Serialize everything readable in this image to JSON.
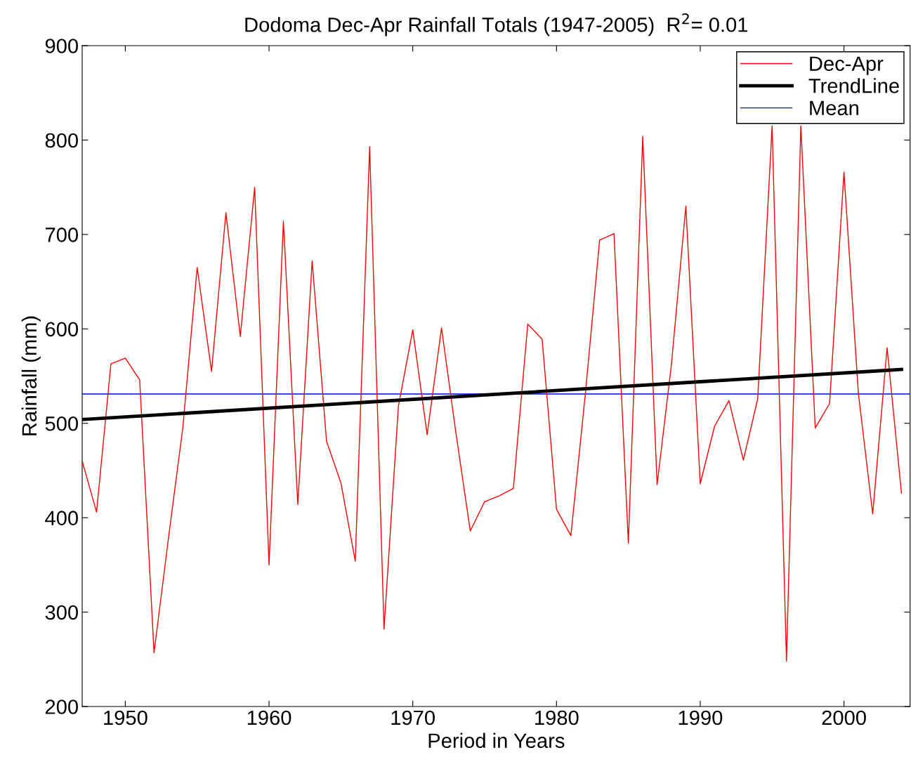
{
  "chart_data": {
    "type": "line",
    "title": "Dodoma Dec-Apr Rainfall Totals (1947-2005)  R$^{2}$= 0.01",
    "xlabel": "Period in Years",
    "ylabel": "Rainfall (mm)",
    "series": [
      {
        "name": "Dec-Apr",
        "color": "#ff0000",
        "x": [
          1947,
          1948,
          1949,
          1950,
          1951,
          1952,
          1953,
          1954,
          1955,
          1956,
          1957,
          1958,
          1959,
          1960,
          1961,
          1962,
          1963,
          1964,
          1965,
          1966,
          1967,
          1968,
          1969,
          1970,
          1971,
          1972,
          1973,
          1974,
          1975,
          1976,
          1977,
          1978,
          1979,
          1980,
          1981,
          1982,
          1983,
          1984,
          1985,
          1986,
          1987,
          1988,
          1989,
          1990,
          1991,
          1992,
          1993,
          1994,
          1995,
          1996,
          1997,
          1998,
          1999,
          2000,
          2001,
          2002,
          2003,
          2004
        ],
        "values": [
          460,
          406,
          563,
          569,
          546,
          257,
          378,
          495,
          665,
          555,
          723,
          592,
          750,
          350,
          714,
          414,
          672,
          481,
          437,
          354,
          793,
          282,
          518,
          599,
          488,
          601,
          490,
          386,
          417,
          423,
          431,
          605,
          589,
          409,
          381,
          530,
          694,
          701,
          373,
          804,
          435,
          563,
          730,
          436,
          497,
          524,
          461,
          526,
          815,
          248,
          815,
          495,
          521,
          766,
          532,
          404,
          580,
          426
        ]
      },
      {
        "name": "TrendLine",
        "color": "#000000",
        "x": [
          1947,
          2004
        ],
        "values": [
          504,
          557
        ]
      }
    ],
    "ref_lines": [
      {
        "axis": "y",
        "value": 531,
        "label": "Mean",
        "color": "#0000ff"
      }
    ],
    "xlim": [
      1947,
      2004.6
    ],
    "ylim": [
      200,
      900
    ],
    "xticks": [
      1950,
      1960,
      1970,
      1980,
      1990,
      2000
    ],
    "yticks": [
      200,
      300,
      400,
      500,
      600,
      700,
      800,
      900
    ],
    "grid": false,
    "legend": "top right"
  }
}
